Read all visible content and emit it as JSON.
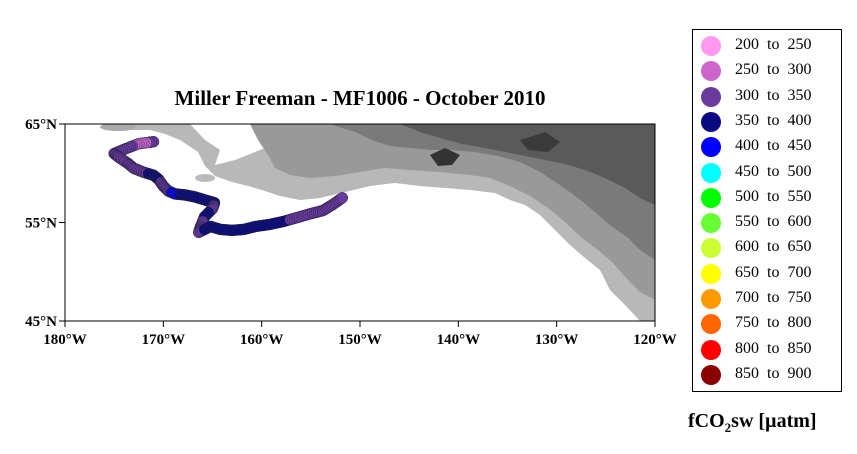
{
  "title": "Miller Freeman - MF1006 - October 2010",
  "map": {
    "lon_range": [
      -180,
      -120
    ],
    "lat_range": [
      45,
      65
    ],
    "x_ticks": [
      {
        "value": -180,
        "label": "180°W"
      },
      {
        "value": -170,
        "label": "170°W"
      },
      {
        "value": -160,
        "label": "160°W"
      },
      {
        "value": -150,
        "label": "150°W"
      },
      {
        "value": -140,
        "label": "140°W"
      },
      {
        "value": -130,
        "label": "130°W"
      },
      {
        "value": -120,
        "label": "120°W"
      }
    ],
    "y_ticks": [
      {
        "value": 65,
        "label": "65°N"
      },
      {
        "value": 55,
        "label": "55°N"
      },
      {
        "value": 45,
        "label": "45°N"
      }
    ],
    "land_color": "#8a8a8a",
    "ocean_color": "#ffffff"
  },
  "chart_data": {
    "type": "scatter",
    "x_label": "",
    "y_label": "",
    "xlim": [
      -180,
      -120
    ],
    "ylim": [
      45,
      65
    ],
    "track_points": [
      {
        "lon": -171,
        "lat": 63.2,
        "v": 310
      },
      {
        "lon": -172.5,
        "lat": 63.0,
        "v": 290
      },
      {
        "lon": -173.8,
        "lat": 62.5,
        "v": 320
      },
      {
        "lon": -175.0,
        "lat": 62.0,
        "v": 330
      },
      {
        "lon": -174.5,
        "lat": 61.6,
        "v": 340
      },
      {
        "lon": -173.6,
        "lat": 61.0,
        "v": 320
      },
      {
        "lon": -173.0,
        "lat": 60.5,
        "v": 330
      },
      {
        "lon": -172.0,
        "lat": 60.1,
        "v": 310
      },
      {
        "lon": -171.0,
        "lat": 59.8,
        "v": 360
      },
      {
        "lon": -170.5,
        "lat": 59.4,
        "v": 370
      },
      {
        "lon": -170.0,
        "lat": 58.7,
        "v": 330
      },
      {
        "lon": -169.5,
        "lat": 58.2,
        "v": 320
      },
      {
        "lon": -168.8,
        "lat": 57.9,
        "v": 420
      },
      {
        "lon": -167.8,
        "lat": 57.8,
        "v": 360
      },
      {
        "lon": -166.8,
        "lat": 57.6,
        "v": 370
      },
      {
        "lon": -165.8,
        "lat": 57.3,
        "v": 350
      },
      {
        "lon": -164.8,
        "lat": 57.0,
        "v": 360
      },
      {
        "lon": -165.0,
        "lat": 56.4,
        "v": 340
      },
      {
        "lon": -165.8,
        "lat": 55.6,
        "v": 350
      },
      {
        "lon": -166.2,
        "lat": 54.6,
        "v": 330
      },
      {
        "lon": -166.4,
        "lat": 54.0,
        "v": 340
      },
      {
        "lon": -165.2,
        "lat": 54.6,
        "v": 360
      },
      {
        "lon": -164.2,
        "lat": 54.3,
        "v": 370
      },
      {
        "lon": -163.0,
        "lat": 54.2,
        "v": 350
      },
      {
        "lon": -161.8,
        "lat": 54.3,
        "v": 360
      },
      {
        "lon": -160.6,
        "lat": 54.6,
        "v": 370
      },
      {
        "lon": -159.2,
        "lat": 54.8,
        "v": 360
      },
      {
        "lon": -157.8,
        "lat": 55.1,
        "v": 350
      },
      {
        "lon": -156.4,
        "lat": 55.5,
        "v": 340
      },
      {
        "lon": -155.0,
        "lat": 55.9,
        "v": 330
      },
      {
        "lon": -153.8,
        "lat": 56.2,
        "v": 320
      },
      {
        "lon": -152.8,
        "lat": 56.8,
        "v": 310
      },
      {
        "lon": -151.8,
        "lat": 57.5,
        "v": 300
      }
    ]
  },
  "legend": {
    "title_main": "fCO",
    "title_sub": "2",
    "title_rest": "sw [µatm]",
    "items": [
      {
        "label": "200  to  250",
        "color": "#ff99f0"
      },
      {
        "label": "250  to  300",
        "color": "#cc66cc"
      },
      {
        "label": "300  to  350",
        "color": "#6b3a9e"
      },
      {
        "label": "350  to  400",
        "color": "#0a0a80"
      },
      {
        "label": "400  to  450",
        "color": "#0000ff"
      },
      {
        "label": "450  to  500",
        "color": "#00ffff"
      },
      {
        "label": "500  to  550",
        "color": "#00ff00"
      },
      {
        "label": "550  to  600",
        "color": "#66ff33"
      },
      {
        "label": "600  to  650",
        "color": "#ccff33"
      },
      {
        "label": "650  to  700",
        "color": "#ffff00"
      },
      {
        "label": "700  to  750",
        "color": "#ff9900"
      },
      {
        "label": "750  to  800",
        "color": "#ff6600"
      },
      {
        "label": "800  to  850",
        "color": "#ff0000"
      },
      {
        "label": "850  to  900",
        "color": "#8b0000"
      }
    ]
  }
}
